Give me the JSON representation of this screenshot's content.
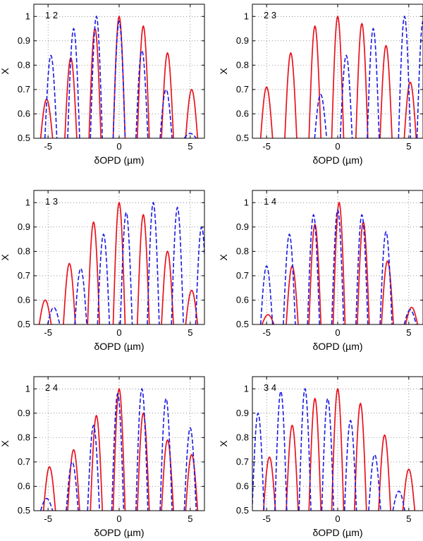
{
  "chart_data": [
    {
      "type": "line",
      "title": "",
      "panel_label": "1 2",
      "xlabel": "δOPD (µm)",
      "ylabel": "X",
      "xlim": [
        -6,
        6
      ],
      "ylim": [
        0.5,
        1.05
      ],
      "xticks": [
        -5,
        0,
        5
      ],
      "xtick_labels": [
        "-5",
        "0",
        "5"
      ],
      "yticks": [
        0.5,
        0.6,
        0.7,
        0.8,
        0.9,
        1.0
      ],
      "ytick_labels": [
        "0.5",
        "0.6",
        "0.7",
        "0.8",
        "0.9",
        "1"
      ],
      "grid": true,
      "series": [
        {
          "name": "red",
          "style": "solid",
          "peaks_x": [
            -5.1,
            -3.4,
            -1.7,
            0.0,
            1.7,
            3.4,
            5.1
          ],
          "peaks_y": [
            0.66,
            0.83,
            0.95,
            1.0,
            0.96,
            0.85,
            0.7
          ]
        },
        {
          "name": "blue",
          "style": "dashed",
          "peaks_x": [
            -4.8,
            -3.2,
            -1.6,
            0.0,
            1.6,
            3.3,
            5.0
          ],
          "peaks_y": [
            0.84,
            0.95,
            1.0,
            0.98,
            0.86,
            0.7,
            0.52
          ]
        }
      ]
    },
    {
      "type": "line",
      "title": "",
      "panel_label": "2 3",
      "xlabel": "δOPD (µm)",
      "ylabel": "X",
      "xlim": [
        -6,
        6
      ],
      "ylim": [
        0.5,
        1.05
      ],
      "xticks": [
        -5,
        0,
        5
      ],
      "xtick_labels": [
        "-5",
        "0",
        "5"
      ],
      "yticks": [
        0.5,
        0.6,
        0.7,
        0.8,
        0.9,
        1.0
      ],
      "ytick_labels": [
        "0.5",
        "0.6",
        "0.7",
        "0.8",
        "0.9",
        "1"
      ],
      "grid": true,
      "series": [
        {
          "name": "red",
          "style": "solid",
          "peaks_x": [
            -5.0,
            -3.3,
            -1.6,
            0.0,
            1.7,
            3.4,
            5.1
          ],
          "peaks_y": [
            0.71,
            0.85,
            0.96,
            1.0,
            0.97,
            0.88,
            0.73
          ]
        },
        {
          "name": "blue",
          "style": "dashed",
          "peaks_x": [
            -1.2,
            0.6,
            2.5,
            4.7,
            6.0
          ],
          "peaks_y": [
            0.68,
            0.84,
            0.95,
            1.0,
            0.98
          ]
        }
      ]
    },
    {
      "type": "line",
      "title": "",
      "panel_label": "1 3",
      "xlabel": "δOPD (µm)",
      "ylabel": "X",
      "xlim": [
        -6,
        6
      ],
      "ylim": [
        0.5,
        1.05
      ],
      "xticks": [
        -5,
        0,
        5
      ],
      "xtick_labels": [
        "-5",
        "0",
        "5"
      ],
      "yticks": [
        0.5,
        0.6,
        0.7,
        0.8,
        0.9,
        1.0
      ],
      "ytick_labels": [
        "0.5",
        "0.6",
        "0.7",
        "0.8",
        "0.9",
        "1"
      ],
      "grid": true,
      "series": [
        {
          "name": "red",
          "style": "solid",
          "peaks_x": [
            -5.2,
            -3.5,
            -1.8,
            0.0,
            1.7,
            3.4,
            5.1
          ],
          "peaks_y": [
            0.6,
            0.75,
            0.92,
            1.0,
            0.95,
            0.8,
            0.64
          ]
        },
        {
          "name": "blue",
          "style": "dashed",
          "peaks_x": [
            -4.6,
            -2.7,
            -1.1,
            0.5,
            2.4,
            4.1,
            5.8
          ],
          "peaks_y": [
            0.57,
            0.73,
            0.87,
            0.96,
            1.0,
            0.98,
            0.9
          ]
        }
      ]
    },
    {
      "type": "line",
      "title": "",
      "panel_label": "1 4",
      "xlabel": "δOPD (µm)",
      "ylabel": "X",
      "xlim": [
        -6,
        6
      ],
      "ylim": [
        0.5,
        1.05
      ],
      "xticks": [
        -5,
        0,
        5
      ],
      "xtick_labels": [
        "-5",
        "0",
        "5"
      ],
      "yticks": [
        0.5,
        0.6,
        0.7,
        0.8,
        0.9,
        1.0
      ],
      "ytick_labels": [
        "0.5",
        "0.6",
        "0.7",
        "0.8",
        "0.9",
        "1"
      ],
      "grid": true,
      "series": [
        {
          "name": "red",
          "style": "solid",
          "peaks_x": [
            -4.9,
            -3.2,
            -1.6,
            0.1,
            1.8,
            3.5,
            5.2
          ],
          "peaks_y": [
            0.54,
            0.74,
            0.91,
            1.0,
            0.92,
            0.76,
            0.57
          ]
        },
        {
          "name": "blue",
          "style": "dashed",
          "peaks_x": [
            -5.0,
            -3.4,
            -1.7,
            0.0,
            1.7,
            3.4,
            5.1
          ],
          "peaks_y": [
            0.74,
            0.87,
            0.95,
            0.97,
            0.95,
            0.88,
            0.56
          ]
        }
      ]
    },
    {
      "type": "line",
      "title": "",
      "panel_label": "2 4",
      "xlabel": "δOPD (µm)",
      "ylabel": "X",
      "xlim": [
        -6,
        6
      ],
      "ylim": [
        0.5,
        1.05
      ],
      "xticks": [
        -5,
        0,
        5
      ],
      "xtick_labels": [
        "-5",
        "0",
        "5"
      ],
      "yticks": [
        0.5,
        0.6,
        0.7,
        0.8,
        0.9,
        1.0
      ],
      "ytick_labels": [
        "0.5",
        "0.6",
        "0.7",
        "0.8",
        "0.9",
        "1"
      ],
      "grid": true,
      "series": [
        {
          "name": "red",
          "style": "solid",
          "peaks_x": [
            -4.9,
            -3.2,
            -1.6,
            0.0,
            1.7,
            3.4,
            5.1
          ],
          "peaks_y": [
            0.68,
            0.75,
            0.89,
            1.0,
            0.9,
            0.79,
            0.73
          ]
        },
        {
          "name": "blue",
          "style": "dashed",
          "peaks_x": [
            -5.1,
            -3.3,
            -1.8,
            -0.1,
            1.6,
            3.3,
            5.0
          ],
          "peaks_y": [
            0.55,
            0.7,
            0.85,
            0.98,
            1.0,
            0.96,
            0.84
          ]
        }
      ]
    },
    {
      "type": "line",
      "title": "",
      "panel_label": "3 4",
      "xlabel": "δOPD (µm)",
      "ylabel": "X",
      "xlim": [
        -6,
        6
      ],
      "ylim": [
        0.5,
        1.05
      ],
      "xticks": [
        -5,
        0,
        5
      ],
      "xtick_labels": [
        "-5",
        "0",
        "5"
      ],
      "yticks": [
        0.5,
        0.6,
        0.7,
        0.8,
        0.9,
        1.0
      ],
      "ytick_labels": [
        "0.5",
        "0.6",
        "0.7",
        "0.8",
        "0.9",
        "1"
      ],
      "grid": true,
      "series": [
        {
          "name": "red",
          "style": "solid",
          "peaks_x": [
            -4.8,
            -3.2,
            -1.6,
            0.0,
            1.6,
            3.3,
            5.0
          ],
          "peaks_y": [
            0.72,
            0.85,
            0.96,
            1.0,
            0.94,
            0.81,
            0.67
          ]
        },
        {
          "name": "blue",
          "style": "dashed",
          "peaks_x": [
            -5.6,
            -4.0,
            -2.3,
            -0.7,
            0.9,
            2.6,
            4.3
          ],
          "peaks_y": [
            0.9,
            0.99,
            1.0,
            0.96,
            0.87,
            0.73,
            0.58
          ]
        }
      ]
    }
  ]
}
